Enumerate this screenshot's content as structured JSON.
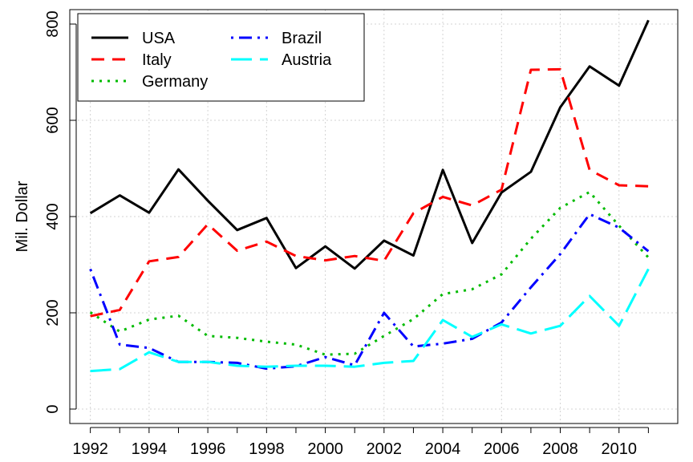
{
  "chart_data": {
    "type": "line",
    "ylabel": "Mil. Dollar",
    "xlabel": "",
    "title": "",
    "xlim": [
      1991.3,
      2012.0
    ],
    "ylim": [
      -30,
      830
    ],
    "xticks": [
      1992,
      1994,
      1996,
      1998,
      2000,
      2002,
      2004,
      2006,
      2008,
      2010
    ],
    "yticks": [
      0,
      200,
      400,
      600,
      800
    ],
    "grid": true,
    "legend_position": "top-left",
    "x": [
      1992,
      1993,
      1994,
      1995,
      1996,
      1997,
      1998,
      1999,
      2000,
      2001,
      2002,
      2003,
      2004,
      2005,
      2006,
      2007,
      2008,
      2009,
      2010,
      2011
    ],
    "series": [
      {
        "name": "USA",
        "color": "#000000",
        "dash": "solid",
        "values": [
          407,
          444,
          408,
          498,
          433,
          372,
          397,
          293,
          338,
          292,
          350,
          319,
          497,
          345,
          450,
          493,
          627,
          712,
          672,
          808
        ]
      },
      {
        "name": "Italy",
        "color": "#ff0000",
        "dash": "dashed",
        "values": [
          193,
          206,
          307,
          316,
          384,
          329,
          348,
          318,
          309,
          318,
          308,
          407,
          441,
          423,
          456,
          705,
          706,
          497,
          465,
          463
        ]
      },
      {
        "name": "Germany",
        "color": "#00bb00",
        "dash": "dotted",
        "values": [
          201,
          161,
          186,
          194,
          152,
          148,
          140,
          134,
          113,
          115,
          152,
          187,
          239,
          249,
          280,
          354,
          418,
          451,
          381,
          315
        ]
      },
      {
        "name": "Brazil",
        "color": "#0000ff",
        "dash": "dotdash",
        "values": [
          291,
          134,
          127,
          98,
          98,
          96,
          84,
          89,
          108,
          91,
          200,
          130,
          136,
          146,
          180,
          253,
          322,
          405,
          377,
          328
        ]
      },
      {
        "name": "Austria",
        "color": "#00ffff",
        "dash": "longdash",
        "values": [
          79,
          83,
          118,
          98,
          98,
          90,
          88,
          90,
          90,
          88,
          96,
          100,
          185,
          150,
          176,
          157,
          173,
          235,
          173,
          291
        ]
      }
    ]
  }
}
